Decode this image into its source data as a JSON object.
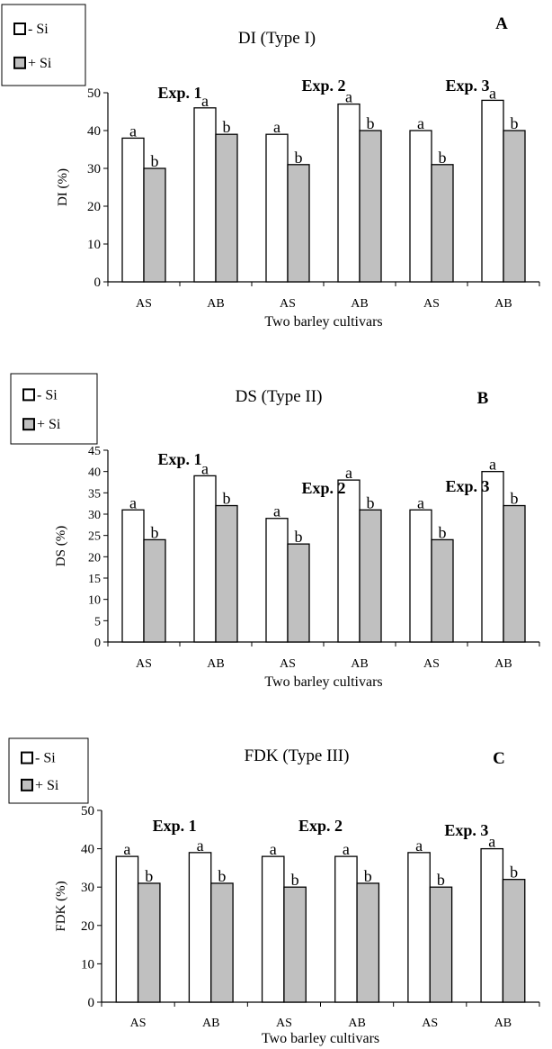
{
  "colors": {
    "minus_si_fill": "#ffffff",
    "plus_si_fill": "#c0c0c0",
    "outline": "#000000"
  },
  "chart_data": [
    {
      "type": "bar",
      "panel_letter": "A",
      "title": "DI (Type I)",
      "ylabel": "DI (%)",
      "xlabel": "Two barley cultivars",
      "ylim": [
        0,
        50
      ],
      "yticks": [
        0,
        10,
        20,
        30,
        40,
        50
      ],
      "categories": [
        "AS",
        "AB",
        "AS",
        "AB",
        "AS",
        "AB"
      ],
      "legend": {
        "position": "top-left",
        "entries": [
          "- Si",
          "+ Si"
        ]
      },
      "groups": [
        {
          "label": "Exp. 1",
          "categories": [
            0,
            1
          ]
        },
        {
          "label": "Exp. 2",
          "categories": [
            2,
            3
          ]
        },
        {
          "label": "Exp. 3",
          "categories": [
            4,
            5
          ]
        }
      ],
      "series": [
        {
          "name": "- Si",
          "values": [
            38,
            46,
            39,
            47,
            40,
            48
          ],
          "letters": [
            "a",
            "a",
            "a",
            "a",
            "a",
            "a"
          ]
        },
        {
          "name": "+ Si",
          "values": [
            30,
            39,
            31,
            40,
            31,
            40
          ],
          "letters": [
            "b",
            "b",
            "b",
            "b",
            "b",
            "b"
          ]
        }
      ]
    },
    {
      "type": "bar",
      "panel_letter": "B",
      "title": "DS (Type II)",
      "ylabel": "DS (%)",
      "xlabel": "Two barley cultivars",
      "ylim": [
        0,
        45
      ],
      "yticks": [
        0,
        5,
        10,
        15,
        20,
        25,
        30,
        35,
        40,
        45
      ],
      "categories": [
        "AS",
        "AB",
        "AS",
        "AB",
        "AS",
        "AB"
      ],
      "legend": {
        "position": "top-left",
        "entries": [
          "- Si",
          "+ Si"
        ]
      },
      "groups": [
        {
          "label": "Exp. 1",
          "categories": [
            0,
            1
          ]
        },
        {
          "label": "Exp. 2",
          "categories": [
            2,
            3
          ]
        },
        {
          "label": "Exp. 3",
          "categories": [
            4,
            5
          ]
        }
      ],
      "series": [
        {
          "name": "- Si",
          "values": [
            31,
            39,
            29,
            38,
            31,
            40
          ],
          "letters": [
            "a",
            "a",
            "a",
            "a",
            "a",
            "a"
          ]
        },
        {
          "name": "+ Si",
          "values": [
            24,
            32,
            23,
            31,
            24,
            32
          ],
          "letters": [
            "b",
            "b",
            "b",
            "b",
            "b",
            "b"
          ]
        }
      ]
    },
    {
      "type": "bar",
      "panel_letter": "C",
      "title": "FDK (Type III)",
      "ylabel": "FDK (%)",
      "xlabel": "Two barley cultivars",
      "ylim": [
        0,
        50
      ],
      "yticks": [
        0,
        10,
        20,
        30,
        40,
        50
      ],
      "categories": [
        "AS",
        "AB",
        "AS",
        "AB",
        "AS",
        "AB"
      ],
      "legend": {
        "position": "top-left",
        "entries": [
          "- Si",
          "+ Si"
        ]
      },
      "groups": [
        {
          "label": "Exp. 1",
          "categories": [
            0,
            1
          ]
        },
        {
          "label": "Exp. 2",
          "categories": [
            2,
            3
          ]
        },
        {
          "label": "Exp. 3",
          "categories": [
            4,
            5
          ]
        }
      ],
      "series": [
        {
          "name": "- Si",
          "values": [
            38,
            39,
            38,
            38,
            39,
            40
          ],
          "letters": [
            "a",
            "a",
            "a",
            "a",
            "a",
            "a"
          ]
        },
        {
          "name": "+ Si",
          "values": [
            31,
            31,
            30,
            31,
            30,
            32
          ],
          "letters": [
            "b",
            "b",
            "b",
            "b",
            "b",
            "b"
          ]
        }
      ]
    }
  ]
}
